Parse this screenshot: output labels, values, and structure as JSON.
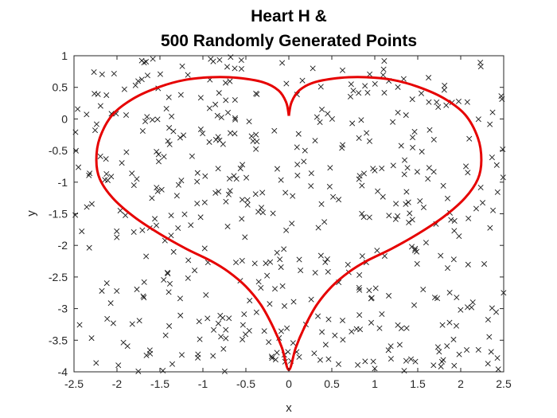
{
  "chart_data": {
    "type": "scatter",
    "title": [
      "Heart H &",
      "500 Randomly Generated Points"
    ],
    "xlabel": "x",
    "ylabel": "y",
    "xlim": [
      -2.5,
      2.5
    ],
    "ylim": [
      -4,
      1
    ],
    "xticks": [
      "-2.5",
      "-2",
      "-1.5",
      "-1",
      "-0.5",
      "0",
      "0.5",
      "1",
      "1.5",
      "2",
      "2.5"
    ],
    "xtick_values": [
      -2.5,
      -2,
      -1.5,
      -1,
      -0.5,
      0,
      0.5,
      1,
      1.5,
      2,
      2.5
    ],
    "yticks": [
      "1",
      "0.5",
      "0",
      "-0.5",
      "-1",
      "-1.5",
      "-2",
      "-2.5",
      "-3",
      "-3.5",
      "-4"
    ],
    "ytick_values": [
      1,
      0.5,
      0,
      -0.5,
      -1,
      -1.5,
      -2,
      -2.5,
      -3,
      -3.5,
      -4
    ],
    "grid": false,
    "series": [
      {
        "kind": "curve",
        "color": "#e60000",
        "points": [
          [
            0.0,
            0.05
          ],
          [
            0.03,
            0.26
          ],
          [
            0.12,
            0.45
          ],
          [
            0.3,
            0.58
          ],
          [
            0.6,
            0.65
          ],
          [
            0.9,
            0.66
          ],
          [
            1.2,
            0.62
          ],
          [
            1.5,
            0.51
          ],
          [
            1.8,
            0.33
          ],
          [
            2.05,
            0.07
          ],
          [
            2.2,
            -0.3
          ],
          [
            2.24,
            -0.65
          ],
          [
            2.2,
            -0.95
          ],
          [
            2.05,
            -1.25
          ],
          [
            1.8,
            -1.55
          ],
          [
            1.5,
            -1.82
          ],
          [
            1.2,
            -2.05
          ],
          [
            0.9,
            -2.25
          ],
          [
            0.7,
            -2.42
          ],
          [
            0.5,
            -2.65
          ],
          [
            0.32,
            -2.95
          ],
          [
            0.18,
            -3.3
          ],
          [
            0.08,
            -3.62
          ],
          [
            0.0,
            -3.97
          ],
          [
            -0.08,
            -3.62
          ],
          [
            -0.18,
            -3.3
          ],
          [
            -0.32,
            -2.95
          ],
          [
            -0.5,
            -2.65
          ],
          [
            -0.7,
            -2.42
          ],
          [
            -0.9,
            -2.25
          ],
          [
            -1.2,
            -2.05
          ],
          [
            -1.5,
            -1.82
          ],
          [
            -1.8,
            -1.55
          ],
          [
            -2.05,
            -1.25
          ],
          [
            -2.2,
            -0.95
          ],
          [
            -2.24,
            -0.65
          ],
          [
            -2.2,
            -0.3
          ],
          [
            -2.05,
            0.07
          ],
          [
            -1.8,
            0.33
          ],
          [
            -1.5,
            0.51
          ],
          [
            -1.2,
            0.62
          ],
          [
            -0.9,
            0.66
          ],
          [
            -0.6,
            0.65
          ],
          [
            -0.3,
            0.58
          ],
          [
            -0.12,
            0.45
          ],
          [
            -0.03,
            0.26
          ],
          [
            0.0,
            0.05
          ]
        ]
      },
      {
        "kind": "markers",
        "marker": "x",
        "color": "#1a1a1a",
        "count": 500,
        "seed": 90210
      }
    ]
  }
}
